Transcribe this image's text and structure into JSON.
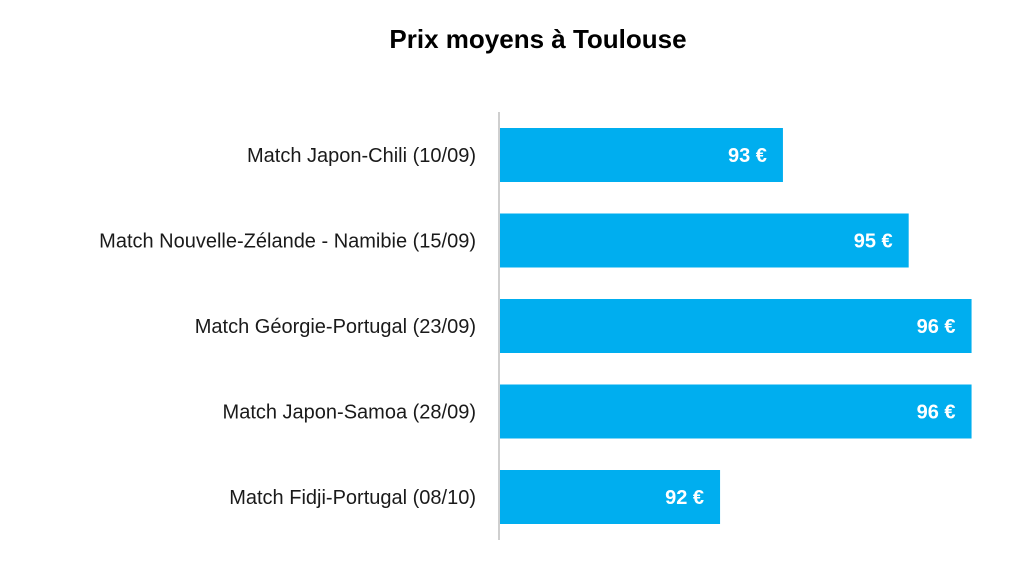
{
  "chart_data": {
    "type": "bar",
    "orientation": "horizontal",
    "title": "Prix moyens à Toulouse",
    "xlabel": "",
    "ylabel": "",
    "categories": [
      "Match Japon-Chili (10/09)",
      "Match Nouvelle-Zélande - Namibie (15/09)",
      "Match Géorgie-Portugal (23/09)",
      "Match Japon-Samoa (28/09)",
      "Match Fidji-Portugal (08/10)"
    ],
    "values": [
      93,
      95,
      96,
      96,
      92
    ],
    "data_labels": [
      "93 €",
      "95 €",
      "96 €",
      "96 €",
      "92 €"
    ],
    "xlim": [
      88.5,
      96.5
    ],
    "grid": false,
    "legend": "none",
    "colors": {
      "bar": "#00AEEF",
      "axis": "#bfbfbf",
      "label": "#ffffff"
    }
  }
}
